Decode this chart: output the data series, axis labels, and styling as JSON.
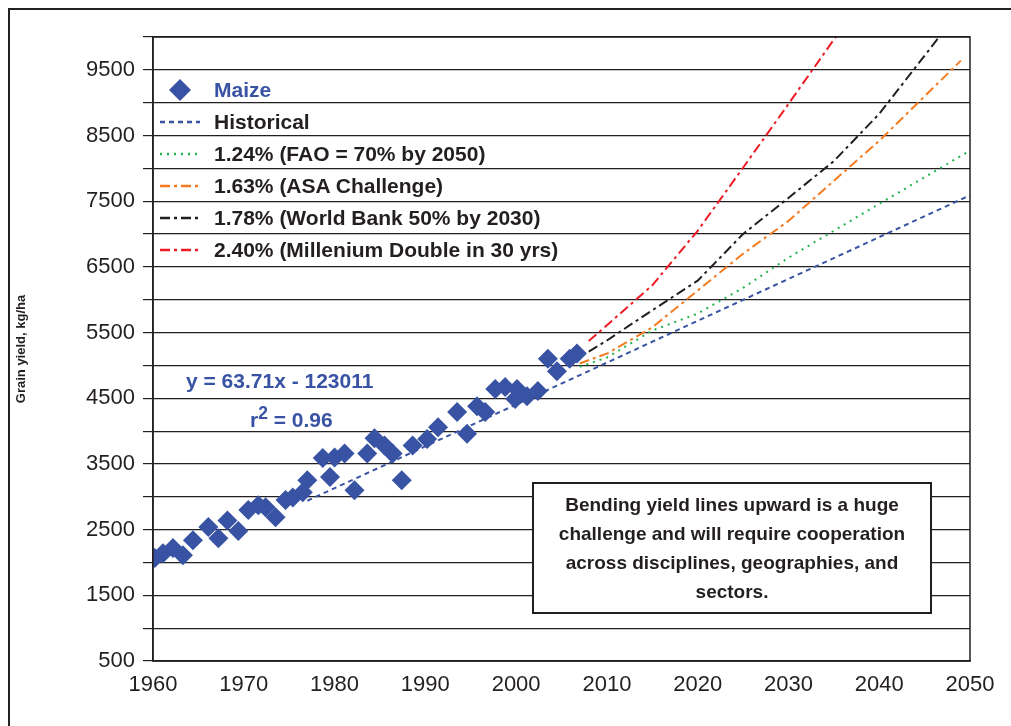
{
  "chart_data": {
    "type": "scatter",
    "ylabel": "Grain yield, kg/ha",
    "xlim": [
      1960,
      2050
    ],
    "xticks": [
      1960,
      1970,
      1980,
      1990,
      2000,
      2010,
      2020,
      2030,
      2040,
      2050
    ],
    "ylim": [
      500,
      10000
    ],
    "yticks": [
      500,
      {
        "value": 1000,
        "label": null
      },
      1500,
      {
        "value": 2000,
        "label": null
      },
      2500,
      {
        "value": 3000,
        "label": null
      },
      3500,
      {
        "value": 4000,
        "label": null
      },
      4500,
      {
        "value": 5000,
        "label": null
      },
      5500,
      {
        "value": 6000,
        "label": null
      },
      6500,
      {
        "value": 7000,
        "label": null
      },
      7500,
      {
        "value": 8000,
        "label": null
      },
      8500,
      {
        "value": 9000,
        "label": null
      },
      9500,
      {
        "value": 10000,
        "label": null
      }
    ],
    "grid": "y",
    "legend": "top left",
    "annotations": [
      "y = 63.71x - 123011",
      "r$^{2}$ = 0.96",
      "Bending yield lines upward is a huge challenge and will require cooperation across disciplines, geographies, and sectors."
    ],
    "series": [
      {
        "name": "Maize",
        "marker": "diamond",
        "color": "#3953a4",
        "x": [
          1960.2,
          1961.1,
          1962.2,
          1963.3,
          1964.4,
          1966.1,
          1967.2,
          1968.2,
          1969.4,
          1970.5,
          1971.6,
          1972.4,
          1973.5,
          1974.6,
          1975.4,
          1976.5,
          1977.0,
          1978.7,
          1979.5,
          1980.0,
          1981.1,
          1982.2,
          1983.6,
          1984.4,
          1985.5,
          1986.4,
          1987.4,
          1988.6,
          1990.2,
          1991.4,
          1993.5,
          1994.6,
          1995.7,
          1996.6,
          1997.7,
          1998.8,
          1999.9,
          2000.1,
          2001.2,
          2002.4,
          2003.5,
          2004.5,
          2005.9,
          2006.7
        ],
        "values": [
          2070,
          2140,
          2220,
          2110,
          2340,
          2540,
          2370,
          2640,
          2480,
          2800,
          2870,
          2840,
          2690,
          2950,
          2990,
          3070,
          3250,
          3590,
          3300,
          3600,
          3660,
          3100,
          3660,
          3890,
          3780,
          3660,
          3250,
          3780,
          3880,
          4060,
          4290,
          3960,
          4380,
          4290,
          4640,
          4670,
          4490,
          4640,
          4530,
          4610,
          5100,
          4910,
          5100,
          5180
        ]
      },
      {
        "name": "Historical",
        "type": "line",
        "line_style": "dashed",
        "marker": "none",
        "color": "#3953a4",
        "x": [
          1977,
          2050
        ],
        "values": [
          2940,
          7590
        ]
      },
      {
        "name": "1.24% (FAO = 70% by 2050)",
        "type": "line",
        "line_style": "dotted",
        "marker": "none",
        "color": "#22b24c",
        "x": [
          2007,
          2010,
          2015,
          2020,
          2025,
          2030,
          2035,
          2040,
          2050
        ],
        "values": [
          4980,
          5120,
          5530,
          5790,
          6180,
          6640,
          7050,
          7460,
          8270
        ]
      },
      {
        "name": "1.63% (ASA Challenge)",
        "type": "line",
        "line_style": "dashdot",
        "marker": "none",
        "color": "#f47b20",
        "x": [
          2007,
          2010,
          2015,
          2020,
          2025,
          2030,
          2035,
          2040,
          2049
        ],
        "values": [
          5030,
          5180,
          5580,
          6140,
          6700,
          7200,
          7810,
          8420,
          9640
        ]
      },
      {
        "name": "1.78% (World Bank 50% by 2030)",
        "type": "line",
        "line_style": "dashdot",
        "marker": "none",
        "color": "#231f20",
        "x": [
          2008,
          2010,
          2015,
          2020,
          2025,
          2030,
          2035,
          2040,
          2046.6
        ],
        "values": [
          5210,
          5380,
          5840,
          6290,
          7000,
          7550,
          8110,
          8830,
          10000
        ]
      },
      {
        "name": "2.40% (Millenium Double in 30 yrs)",
        "type": "line",
        "line_style": "dashdot",
        "marker": "none",
        "color": "#ed1c24",
        "x": [
          2008,
          2010,
          2015,
          2020,
          2025,
          2030,
          2035.2
        ],
        "values": [
          5370,
          5610,
          6220,
          7050,
          8010,
          8980,
          10000
        ]
      }
    ]
  }
}
